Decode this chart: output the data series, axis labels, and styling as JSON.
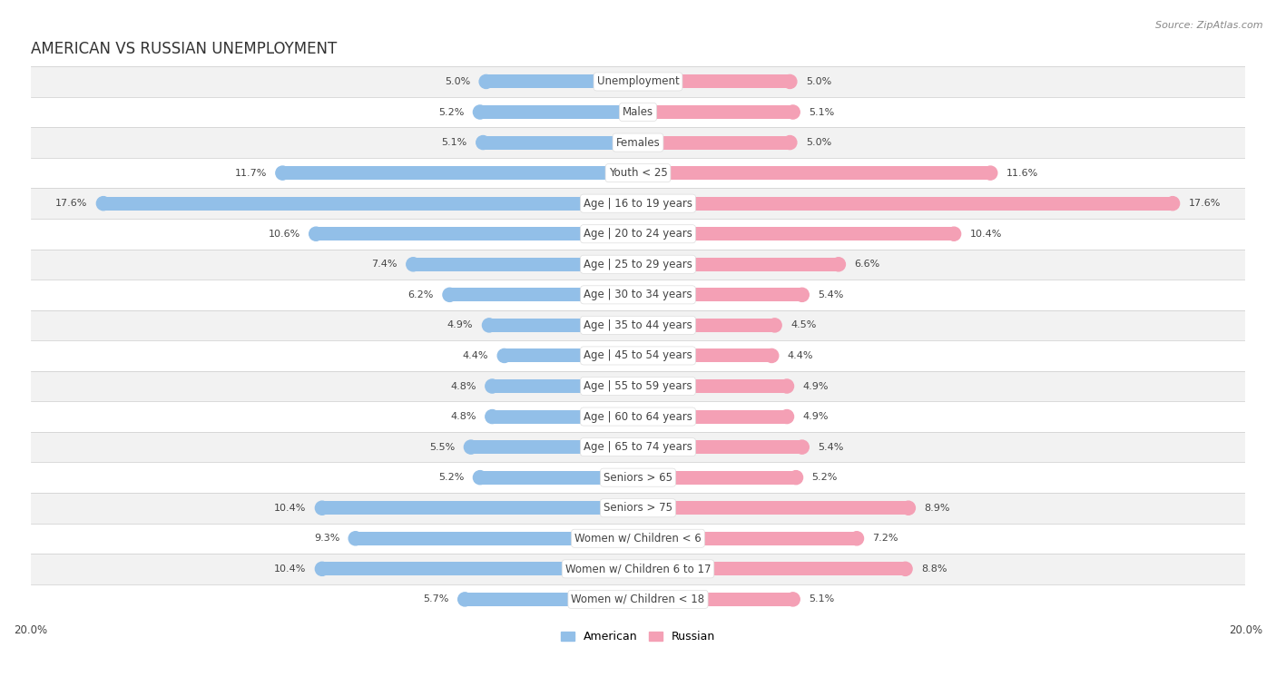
{
  "title": "AMERICAN VS RUSSIAN UNEMPLOYMENT",
  "source": "Source: ZipAtlas.com",
  "categories": [
    "Unemployment",
    "Males",
    "Females",
    "Youth < 25",
    "Age | 16 to 19 years",
    "Age | 20 to 24 years",
    "Age | 25 to 29 years",
    "Age | 30 to 34 years",
    "Age | 35 to 44 years",
    "Age | 45 to 54 years",
    "Age | 55 to 59 years",
    "Age | 60 to 64 years",
    "Age | 65 to 74 years",
    "Seniors > 65",
    "Seniors > 75",
    "Women w/ Children < 6",
    "Women w/ Children 6 to 17",
    "Women w/ Children < 18"
  ],
  "american": [
    5.0,
    5.2,
    5.1,
    11.7,
    17.6,
    10.6,
    7.4,
    6.2,
    4.9,
    4.4,
    4.8,
    4.8,
    5.5,
    5.2,
    10.4,
    9.3,
    10.4,
    5.7
  ],
  "russian": [
    5.0,
    5.1,
    5.0,
    11.6,
    17.6,
    10.4,
    6.6,
    5.4,
    4.5,
    4.4,
    4.9,
    4.9,
    5.4,
    5.2,
    8.9,
    7.2,
    8.8,
    5.1
  ],
  "american_color": "#92bfe8",
  "russian_color": "#f4a0b5",
  "american_color_dark": "#5a9fd4",
  "russian_color_dark": "#ef6b8a",
  "axis_max": 20.0,
  "bg_color": "#ffffff",
  "row_color_odd": "#f2f2f2",
  "row_color_even": "#ffffff",
  "bar_height": 0.45,
  "title_fontsize": 12,
  "label_fontsize": 8.5,
  "value_fontsize": 8.0,
  "source_fontsize": 8.0
}
